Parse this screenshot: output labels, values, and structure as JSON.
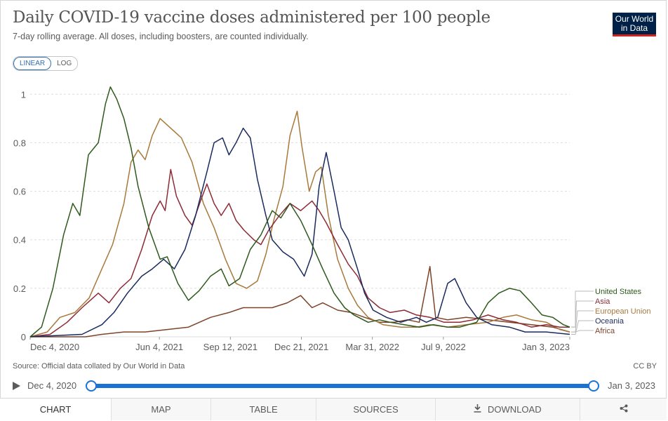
{
  "header": {
    "title": "Daily COVID-19 vaccine doses administered per 100 people",
    "subtitle": "7-day rolling average. All doses, including boosters, are counted individually.",
    "logo_line1": "Our World",
    "logo_line2": "in Data"
  },
  "scale_toggle": {
    "linear_label": "LINEAR",
    "log_label": "LOG",
    "selected": "LINEAR"
  },
  "footer": {
    "source": "Source: Official data collated by Our World in Data",
    "license": "CC BY"
  },
  "timeline": {
    "start_label": "Dec 4, 2020",
    "end_label": "Jan 3, 2023",
    "start_fraction": 0,
    "end_fraction": 1
  },
  "tabs": [
    {
      "label": "CHART",
      "active": true
    },
    {
      "label": "MAP",
      "active": false
    },
    {
      "label": "TABLE",
      "active": false
    },
    {
      "label": "SOURCES",
      "active": false
    },
    {
      "label": "DOWNLOAD",
      "active": false,
      "icon": "download-icon"
    },
    {
      "label": "",
      "active": false,
      "icon": "share-icon"
    }
  ],
  "colors": {
    "United States": "#2d5a1b",
    "Asia": "#8e2a35",
    "European Union": "#a8793b",
    "Oceania": "#1a2a5e",
    "Africa": "#7d4328",
    "grid": "#dddddd",
    "axis_text": "#5b5b5b"
  },
  "chart_data": {
    "type": "line",
    "title": "Daily COVID-19 vaccine doses administered per 100 people",
    "subtitle": "7-day rolling average. All doses, including boosters, are counted individually.",
    "xlabel": "",
    "ylabel": "",
    "x_range": [
      "2020-12-04",
      "2023-01-03"
    ],
    "ylim": [
      0,
      1.0
    ],
    "y_ticks": [
      0,
      0.2,
      0.4,
      0.6,
      0.8,
      1
    ],
    "x_ticks": [
      {
        "date": "2020-12-04",
        "label": "Dec 4, 2020"
      },
      {
        "date": "2021-06-04",
        "label": "Jun 4, 2021"
      },
      {
        "date": "2021-09-12",
        "label": "Sep 12, 2021"
      },
      {
        "date": "2021-12-21",
        "label": "Dec 21, 2021"
      },
      {
        "date": "2022-03-31",
        "label": "Mar 31, 2022"
      },
      {
        "date": "2022-07-09",
        "label": "Jul 9, 2022"
      },
      {
        "date": "2023-01-03",
        "label": "Jan 3, 2023"
      }
    ],
    "grid": true,
    "legend_position": "right",
    "scale": "linear",
    "series": [
      {
        "name": "United States",
        "points": [
          [
            "2020-12-04",
            0.0
          ],
          [
            "2020-12-20",
            0.04
          ],
          [
            "2021-01-05",
            0.2
          ],
          [
            "2021-01-20",
            0.42
          ],
          [
            "2021-02-02",
            0.55
          ],
          [
            "2021-02-12",
            0.5
          ],
          [
            "2021-02-24",
            0.75
          ],
          [
            "2021-03-10",
            0.8
          ],
          [
            "2021-03-20",
            0.96
          ],
          [
            "2021-03-27",
            1.03
          ],
          [
            "2021-04-05",
            0.98
          ],
          [
            "2021-04-15",
            0.9
          ],
          [
            "2021-04-25",
            0.78
          ],
          [
            "2021-05-05",
            0.62
          ],
          [
            "2021-05-20",
            0.45
          ],
          [
            "2021-06-05",
            0.32
          ],
          [
            "2021-06-15",
            0.33
          ],
          [
            "2021-06-30",
            0.22
          ],
          [
            "2021-07-15",
            0.15
          ],
          [
            "2021-07-30",
            0.19
          ],
          [
            "2021-08-15",
            0.25
          ],
          [
            "2021-08-30",
            0.28
          ],
          [
            "2021-09-10",
            0.21
          ],
          [
            "2021-09-25",
            0.24
          ],
          [
            "2021-10-10",
            0.36
          ],
          [
            "2021-10-25",
            0.42
          ],
          [
            "2021-11-10",
            0.52
          ],
          [
            "2021-11-22",
            0.49
          ],
          [
            "2021-12-05",
            0.55
          ],
          [
            "2021-12-20",
            0.48
          ],
          [
            "2022-01-05",
            0.38
          ],
          [
            "2022-01-20",
            0.28
          ],
          [
            "2022-02-05",
            0.18
          ],
          [
            "2022-02-20",
            0.12
          ],
          [
            "2022-03-05",
            0.09
          ],
          [
            "2022-03-25",
            0.06
          ],
          [
            "2022-04-10",
            0.07
          ],
          [
            "2022-04-25",
            0.06
          ],
          [
            "2022-05-15",
            0.05
          ],
          [
            "2022-06-05",
            0.04
          ],
          [
            "2022-06-25",
            0.05
          ],
          [
            "2022-07-15",
            0.04
          ],
          [
            "2022-08-01",
            0.04
          ],
          [
            "2022-08-25",
            0.06
          ],
          [
            "2022-09-10",
            0.14
          ],
          [
            "2022-09-25",
            0.18
          ],
          [
            "2022-10-10",
            0.2
          ],
          [
            "2022-10-25",
            0.19
          ],
          [
            "2022-11-10",
            0.14
          ],
          [
            "2022-11-25",
            0.09
          ],
          [
            "2022-12-10",
            0.08
          ],
          [
            "2022-12-25",
            0.05
          ],
          [
            "2023-01-03",
            0.04
          ]
        ]
      },
      {
        "name": "Asia",
        "points": [
          [
            "2020-12-04",
            0.0
          ],
          [
            "2021-01-01",
            0.01
          ],
          [
            "2021-01-25",
            0.06
          ],
          [
            "2021-02-15",
            0.12
          ],
          [
            "2021-03-10",
            0.18
          ],
          [
            "2021-03-25",
            0.14
          ],
          [
            "2021-04-10",
            0.2
          ],
          [
            "2021-04-25",
            0.24
          ],
          [
            "2021-05-10",
            0.36
          ],
          [
            "2021-05-25",
            0.5
          ],
          [
            "2021-06-05",
            0.56
          ],
          [
            "2021-06-12",
            0.52
          ],
          [
            "2021-06-20",
            0.69
          ],
          [
            "2021-06-28",
            0.58
          ],
          [
            "2021-07-10",
            0.5
          ],
          [
            "2021-07-20",
            0.46
          ],
          [
            "2021-08-01",
            0.56
          ],
          [
            "2021-08-10",
            0.63
          ],
          [
            "2021-08-20",
            0.55
          ],
          [
            "2021-08-30",
            0.5
          ],
          [
            "2021-09-10",
            0.55
          ],
          [
            "2021-09-20",
            0.48
          ],
          [
            "2021-10-01",
            0.44
          ],
          [
            "2021-10-15",
            0.4
          ],
          [
            "2021-10-25",
            0.38
          ],
          [
            "2021-11-05",
            0.44
          ],
          [
            "2021-11-20",
            0.5
          ],
          [
            "2021-12-05",
            0.55
          ],
          [
            "2021-12-20",
            0.52
          ],
          [
            "2022-01-05",
            0.56
          ],
          [
            "2022-01-15",
            0.52
          ],
          [
            "2022-01-25",
            0.47
          ],
          [
            "2022-02-10",
            0.38
          ],
          [
            "2022-02-25",
            0.3
          ],
          [
            "2022-03-10",
            0.25
          ],
          [
            "2022-03-25",
            0.16
          ],
          [
            "2022-04-10",
            0.12
          ],
          [
            "2022-04-25",
            0.1
          ],
          [
            "2022-05-15",
            0.11
          ],
          [
            "2022-06-01",
            0.09
          ],
          [
            "2022-06-20",
            0.08
          ],
          [
            "2022-07-10",
            0.06
          ],
          [
            "2022-08-01",
            0.06
          ],
          [
            "2022-08-20",
            0.07
          ],
          [
            "2022-09-10",
            0.09
          ],
          [
            "2022-10-01",
            0.07
          ],
          [
            "2022-10-20",
            0.06
          ],
          [
            "2022-11-10",
            0.04
          ],
          [
            "2022-12-01",
            0.05
          ],
          [
            "2022-12-20",
            0.04
          ],
          [
            "2023-01-03",
            0.04
          ]
        ]
      },
      {
        "name": "European Union",
        "points": [
          [
            "2020-12-04",
            0.0
          ],
          [
            "2020-12-28",
            0.02
          ],
          [
            "2021-01-15",
            0.08
          ],
          [
            "2021-02-05",
            0.1
          ],
          [
            "2021-02-25",
            0.16
          ],
          [
            "2021-03-15",
            0.28
          ],
          [
            "2021-03-30",
            0.38
          ],
          [
            "2021-04-15",
            0.55
          ],
          [
            "2021-04-25",
            0.72
          ],
          [
            "2021-05-05",
            0.77
          ],
          [
            "2021-05-15",
            0.73
          ],
          [
            "2021-05-25",
            0.83
          ],
          [
            "2021-06-05",
            0.9
          ],
          [
            "2021-06-20",
            0.86
          ],
          [
            "2021-07-05",
            0.82
          ],
          [
            "2021-07-20",
            0.72
          ],
          [
            "2021-08-05",
            0.55
          ],
          [
            "2021-08-20",
            0.45
          ],
          [
            "2021-09-05",
            0.32
          ],
          [
            "2021-09-20",
            0.22
          ],
          [
            "2021-10-05",
            0.2
          ],
          [
            "2021-10-20",
            0.23
          ],
          [
            "2021-11-01",
            0.34
          ],
          [
            "2021-11-12",
            0.48
          ],
          [
            "2021-11-25",
            0.62
          ],
          [
            "2021-12-05",
            0.83
          ],
          [
            "2021-12-15",
            0.93
          ],
          [
            "2021-12-22",
            0.78
          ],
          [
            "2022-01-01",
            0.6
          ],
          [
            "2022-01-10",
            0.68
          ],
          [
            "2022-01-18",
            0.7
          ],
          [
            "2022-01-28",
            0.5
          ],
          [
            "2022-02-10",
            0.32
          ],
          [
            "2022-02-25",
            0.2
          ],
          [
            "2022-03-10",
            0.13
          ],
          [
            "2022-03-25",
            0.08
          ],
          [
            "2022-04-15",
            0.05
          ],
          [
            "2022-05-10",
            0.04
          ],
          [
            "2022-06-01",
            0.04
          ],
          [
            "2022-06-20",
            0.05
          ],
          [
            "2022-07-15",
            0.04
          ],
          [
            "2022-08-10",
            0.05
          ],
          [
            "2022-09-10",
            0.06
          ],
          [
            "2022-10-01",
            0.08
          ],
          [
            "2022-10-20",
            0.09
          ],
          [
            "2022-11-10",
            0.07
          ],
          [
            "2022-12-01",
            0.06
          ],
          [
            "2022-12-20",
            0.03
          ],
          [
            "2023-01-03",
            0.02
          ]
        ]
      },
      {
        "name": "Oceania",
        "points": [
          [
            "2020-12-04",
            0.0
          ],
          [
            "2021-02-15",
            0.01
          ],
          [
            "2021-03-15",
            0.05
          ],
          [
            "2021-04-01",
            0.1
          ],
          [
            "2021-04-20",
            0.18
          ],
          [
            "2021-05-10",
            0.25
          ],
          [
            "2021-05-25",
            0.28
          ],
          [
            "2021-06-10",
            0.32
          ],
          [
            "2021-06-25",
            0.28
          ],
          [
            "2021-07-10",
            0.36
          ],
          [
            "2021-07-25",
            0.5
          ],
          [
            "2021-08-10",
            0.68
          ],
          [
            "2021-08-20",
            0.8
          ],
          [
            "2021-09-01",
            0.82
          ],
          [
            "2021-09-10",
            0.75
          ],
          [
            "2021-09-20",
            0.8
          ],
          [
            "2021-09-30",
            0.86
          ],
          [
            "2021-10-10",
            0.82
          ],
          [
            "2021-10-20",
            0.65
          ],
          [
            "2021-11-01",
            0.5
          ],
          [
            "2021-11-10",
            0.4
          ],
          [
            "2021-11-25",
            0.35
          ],
          [
            "2021-12-10",
            0.32
          ],
          [
            "2021-12-25",
            0.25
          ],
          [
            "2022-01-05",
            0.34
          ],
          [
            "2022-01-15",
            0.62
          ],
          [
            "2022-01-25",
            0.76
          ],
          [
            "2022-02-05",
            0.6
          ],
          [
            "2022-02-15",
            0.45
          ],
          [
            "2022-02-25",
            0.4
          ],
          [
            "2022-03-10",
            0.28
          ],
          [
            "2022-03-20",
            0.18
          ],
          [
            "2022-04-01",
            0.11
          ],
          [
            "2022-04-20",
            0.08
          ],
          [
            "2022-05-10",
            0.06
          ],
          [
            "2022-06-01",
            0.08
          ],
          [
            "2022-06-15",
            0.06
          ],
          [
            "2022-07-01",
            0.08
          ],
          [
            "2022-07-15",
            0.22
          ],
          [
            "2022-07-25",
            0.24
          ],
          [
            "2022-08-10",
            0.14
          ],
          [
            "2022-08-25",
            0.08
          ],
          [
            "2022-09-15",
            0.05
          ],
          [
            "2022-10-10",
            0.04
          ],
          [
            "2022-11-01",
            0.02
          ],
          [
            "2022-12-01",
            0.02
          ],
          [
            "2023-01-03",
            0.01
          ]
        ]
      },
      {
        "name": "Africa",
        "points": [
          [
            "2020-12-04",
            0.0
          ],
          [
            "2021-02-20",
            0.0
          ],
          [
            "2021-03-15",
            0.01
          ],
          [
            "2021-04-15",
            0.02
          ],
          [
            "2021-05-15",
            0.02
          ],
          [
            "2021-06-15",
            0.03
          ],
          [
            "2021-07-15",
            0.04
          ],
          [
            "2021-08-15",
            0.08
          ],
          [
            "2021-09-10",
            0.1
          ],
          [
            "2021-09-30",
            0.12
          ],
          [
            "2021-10-20",
            0.12
          ],
          [
            "2021-11-10",
            0.12
          ],
          [
            "2021-12-01",
            0.14
          ],
          [
            "2021-12-20",
            0.17
          ],
          [
            "2022-01-05",
            0.12
          ],
          [
            "2022-01-20",
            0.14
          ],
          [
            "2022-02-10",
            0.11
          ],
          [
            "2022-03-01",
            0.1
          ],
          [
            "2022-03-20",
            0.08
          ],
          [
            "2022-04-10",
            0.06
          ],
          [
            "2022-05-01",
            0.06
          ],
          [
            "2022-05-20",
            0.07
          ],
          [
            "2022-06-05",
            0.06
          ],
          [
            "2022-06-20",
            0.29
          ],
          [
            "2022-06-28",
            0.08
          ],
          [
            "2022-07-15",
            0.07
          ],
          [
            "2022-08-10",
            0.08
          ],
          [
            "2022-09-10",
            0.07
          ],
          [
            "2022-10-10",
            0.06
          ],
          [
            "2022-11-10",
            0.05
          ],
          [
            "2022-12-10",
            0.04
          ],
          [
            "2023-01-03",
            0.02
          ]
        ]
      }
    ]
  }
}
